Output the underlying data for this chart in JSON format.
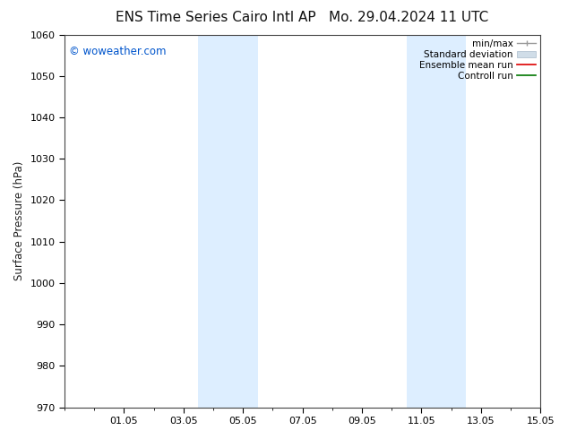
{
  "title_left": "ENS Time Series Cairo Intl AP",
  "title_right": "Mo. 29.04.2024 11 UTC",
  "ylabel": "Surface Pressure (hPa)",
  "watermark": "© woweather.com",
  "watermark_color": "#0055cc",
  "ylim": [
    970,
    1060
  ],
  "yticks": [
    970,
    980,
    990,
    1000,
    1010,
    1020,
    1030,
    1040,
    1050,
    1060
  ],
  "xlim": [
    0,
    16
  ],
  "xtick_labels": [
    "01.05",
    "03.05",
    "05.05",
    "07.05",
    "09.05",
    "11.05",
    "13.05",
    "15.05"
  ],
  "xtick_positions": [
    2,
    4,
    6,
    8,
    10,
    12,
    14,
    16
  ],
  "shaded_bands": [
    {
      "x_start": 4.5,
      "x_end": 6.5,
      "color": "#ddeeff"
    },
    {
      "x_start": 11.5,
      "x_end": 13.5,
      "color": "#ddeeff"
    }
  ],
  "background_color": "#ffffff",
  "title_fontsize": 11,
  "tick_fontsize": 8,
  "legend_fontsize": 7.5
}
